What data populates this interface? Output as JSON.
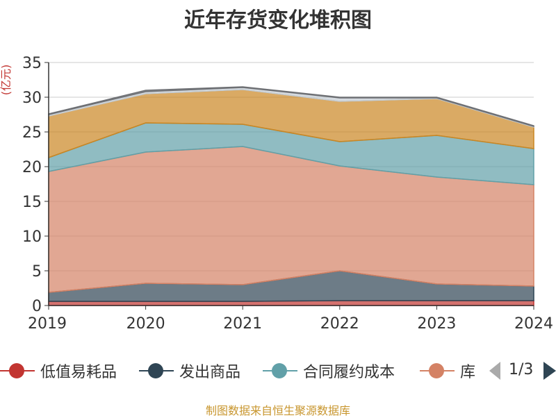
{
  "chart_data": {
    "type": "area",
    "stacked": true,
    "title": "近年存货变化堆积图",
    "ylabel": "(亿元)",
    "x": [
      "2019",
      "2020",
      "2021",
      "2022",
      "2023",
      "2024"
    ],
    "ylim": [
      0,
      35
    ],
    "yticks": [
      "0",
      "5",
      "10",
      "15",
      "20",
      "25",
      "30",
      "35"
    ],
    "grid": true,
    "legend_position": "bottom",
    "series": [
      {
        "name": "低值易耗品",
        "color": "#c23531",
        "values": [
          0.6,
          0.6,
          0.6,
          0.7,
          0.7,
          0.7
        ]
      },
      {
        "name": "发出商品",
        "color": "#2f4554",
        "values": [
          1.3,
          2.6,
          2.4,
          4.3,
          2.4,
          2.1
        ]
      },
      {
        "name": "",
        "color": "#d48265",
        "values": [
          17.4,
          18.9,
          19.9,
          15.1,
          15.4,
          14.6
        ]
      },
      {
        "name": "合同履约成本",
        "color": "#61a0a8",
        "values": [
          2.0,
          4.2,
          3.2,
          3.5,
          6.0,
          5.2
        ]
      },
      {
        "name": "",
        "color": "#ca8622",
        "values": [
          6.0,
          4.2,
          5.0,
          5.8,
          5.3,
          3.1
        ]
      },
      {
        "name": "",
        "color": "#c4ccd3",
        "values": [
          0.2,
          0.3,
          0.3,
          0.5,
          0.1,
          0.1
        ]
      },
      {
        "name": "",
        "color": "#6e7074",
        "values": [
          0.1,
          0.2,
          0.1,
          0.1,
          0.1,
          0.1
        ]
      }
    ]
  },
  "legend": {
    "items": [
      {
        "name": "低值易耗品",
        "color": "#c23531"
      },
      {
        "name": "发出商品",
        "color": "#2f4554"
      },
      {
        "name": "合同履约成本",
        "color": "#61a0a8"
      },
      {
        "name": "库",
        "color": "#d48265"
      }
    ],
    "page_text": "1/3"
  },
  "source_note": "制图数据来自恒生聚源数据库"
}
